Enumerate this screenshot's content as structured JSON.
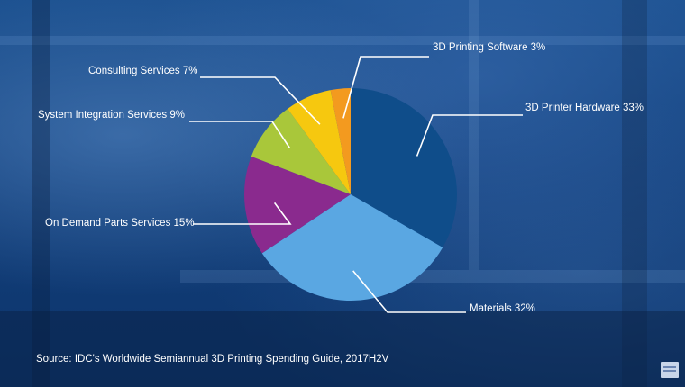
{
  "chart_data": {
    "type": "pie",
    "title": "",
    "start_angle_deg": 0,
    "direction": "clockwise",
    "slices": [
      {
        "label": "3D Printer Hardware 33%",
        "value": 33,
        "color": "#0f4d8a"
      },
      {
        "label": "Materials 32%",
        "value": 32,
        "color": "#5aa7e2"
      },
      {
        "label": "On Demand Parts Services 15%",
        "value": 15,
        "color": "#8a2a8e"
      },
      {
        "label": "System Integration Services 9%",
        "value": 9,
        "color": "#a9c73a"
      },
      {
        "label": "Consulting Services 7%",
        "value": 7,
        "color": "#f6c80f"
      },
      {
        "label": "3D Printing Software 3%",
        "value": 3,
        "color": "#f39a1f"
      }
    ],
    "source": "Source: IDC's Worldwide Semiannual 3D Printing Spending Guide, 2017H2V"
  }
}
